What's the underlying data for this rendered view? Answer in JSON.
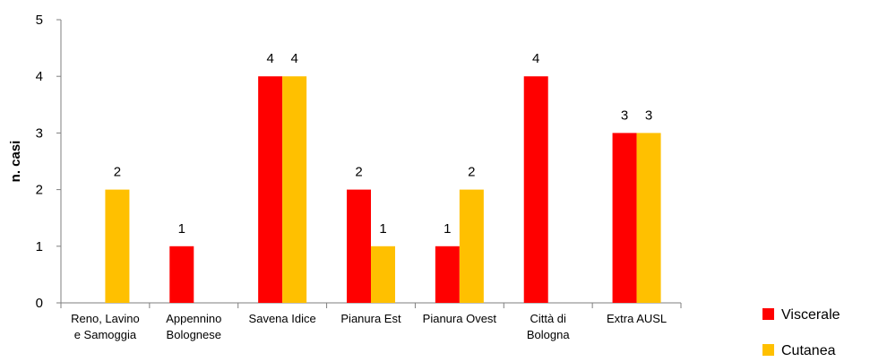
{
  "chart_data": {
    "type": "bar",
    "title": "",
    "xlabel": "",
    "ylabel": "n. casi",
    "ylim": [
      0,
      5
    ],
    "yticks": [
      0,
      1,
      2,
      3,
      4,
      5
    ],
    "grid": false,
    "legend_position": "bottom-right",
    "categories": [
      [
        "Reno, Lavino",
        "e Samoggia"
      ],
      [
        "Appennino",
        "Bolognese"
      ],
      [
        "Savena Idice"
      ],
      [
        "Pianura Est"
      ],
      [
        "Pianura Ovest"
      ],
      [
        "Città di",
        "Bologna"
      ],
      [
        "Extra AUSL"
      ]
    ],
    "series": [
      {
        "name": "Viscerale",
        "color": "#ff0000",
        "values": [
          0,
          1,
          4,
          2,
          1,
          4,
          3
        ]
      },
      {
        "name": "Cutanea",
        "color": "#ffc000",
        "values": [
          2,
          0,
          4,
          1,
          2,
          0,
          3
        ]
      }
    ]
  }
}
